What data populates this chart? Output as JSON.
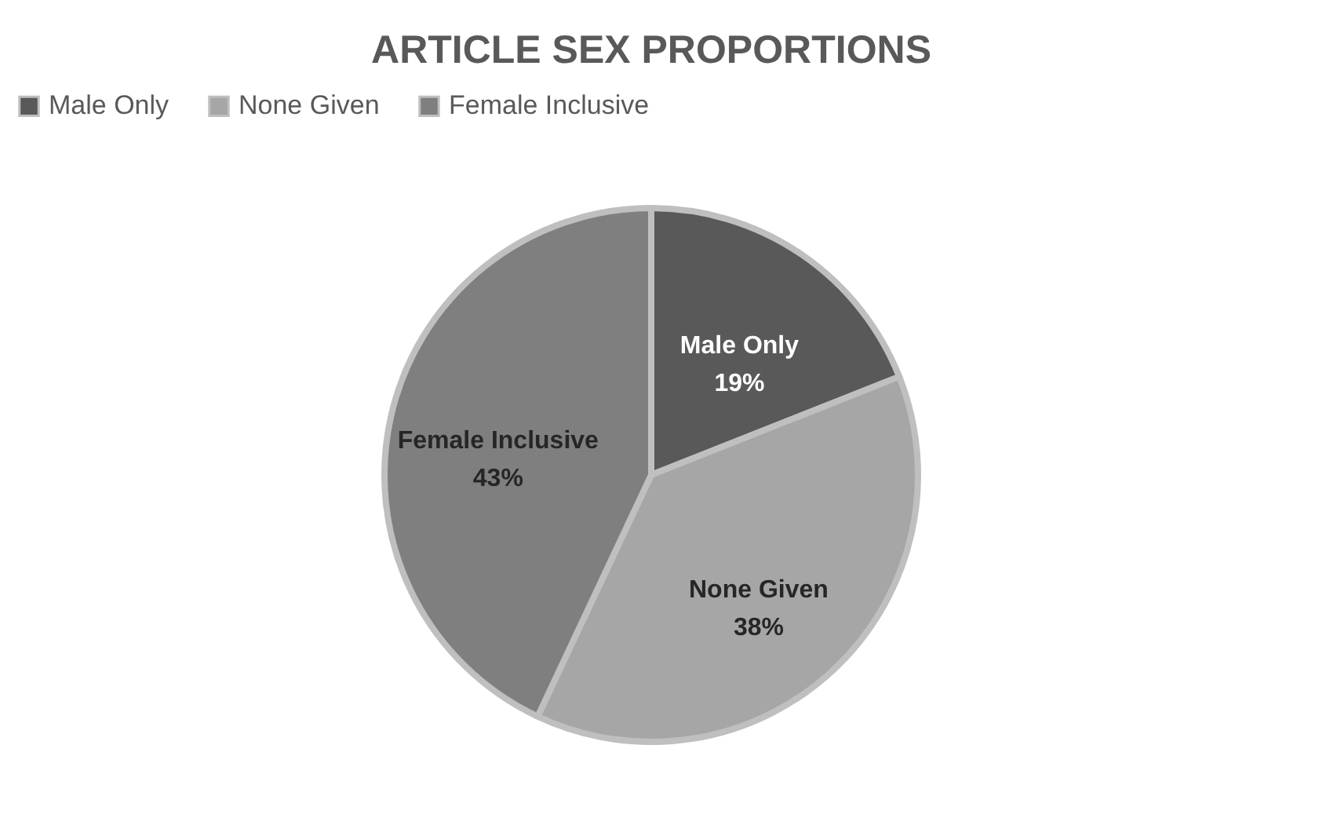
{
  "chart_data": {
    "type": "pie",
    "title": "ARTICLE SEX PROPORTIONS",
    "categories": [
      "Male Only",
      "None Given",
      "Female Inclusive"
    ],
    "values": [
      19,
      38,
      43
    ],
    "colors": [
      "#595959",
      "#a6a6a6",
      "#7f7f7f"
    ],
    "value_labels": [
      "19%",
      "38%",
      "43%"
    ],
    "legend": "top"
  }
}
